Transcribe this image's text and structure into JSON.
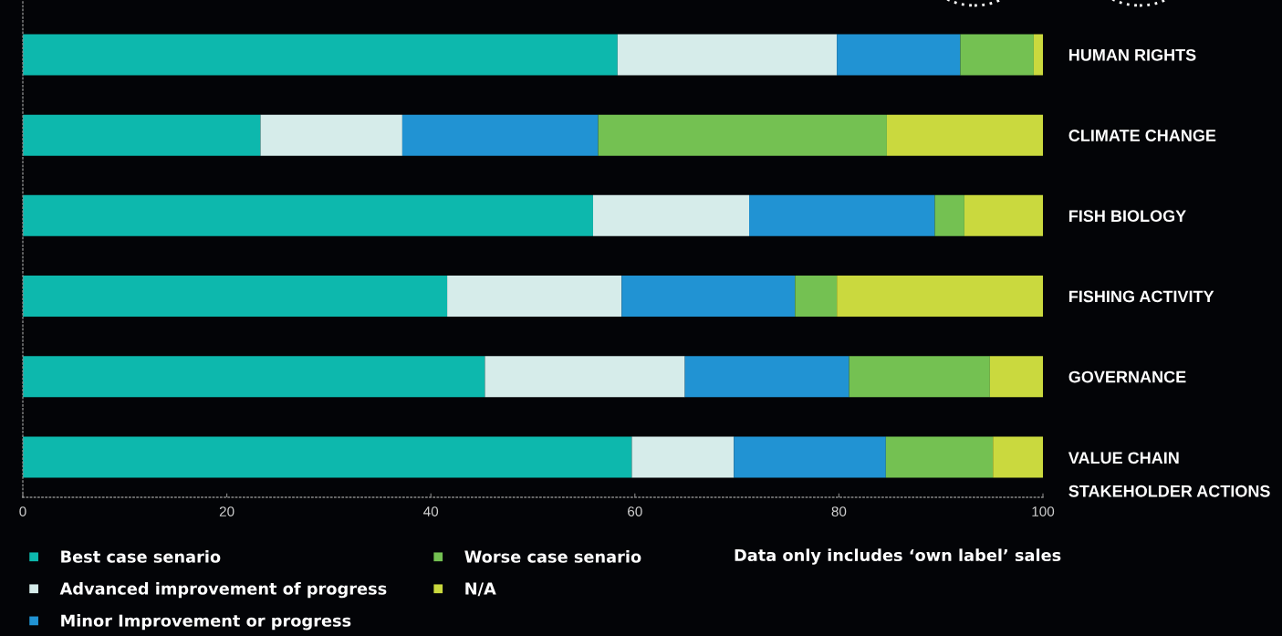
{
  "chart_data": {
    "type": "bar",
    "orientation": "horizontal",
    "stacked": true,
    "categories": [
      "HUMAN RIGHTS",
      "CLIMATE CHANGE",
      "FISH BIOLOGY",
      "FISHING ACTIVITY",
      "GOVERNANCE",
      "VALUE CHAIN\nSTAKEHOLDER ACTIONS"
    ],
    "series": [
      {
        "name": "Best case senario",
        "color": "#0db8ad",
        "values": [
          58.3,
          23.3,
          55.9,
          41.6,
          45.3,
          59.7
        ]
      },
      {
        "name": "Advanced improvement of progress",
        "color": "#d6ecea",
        "values": [
          21.5,
          13.9,
          15.3,
          17.1,
          19.6,
          10.0
        ]
      },
      {
        "name": "Minor Improvement or progress",
        "color": "#2193d3",
        "values": [
          12.1,
          19.2,
          18.2,
          17.0,
          16.1,
          14.9
        ]
      },
      {
        "name": "Worse case senario",
        "color": "#74c152",
        "values": [
          7.2,
          28.3,
          2.9,
          4.1,
          13.8,
          10.5
        ]
      },
      {
        "name": "N/A",
        "color": "#cad93e",
        "values": [
          0.9,
          15.3,
          7.7,
          20.2,
          5.2,
          4.9
        ]
      }
    ],
    "xlim": [
      0,
      100
    ],
    "xticks": [
      0,
      20,
      40,
      60,
      80,
      100
    ],
    "legend": "bottom",
    "grid": false,
    "annotations": [
      "Data only includes ‘own label’ sales"
    ]
  }
}
